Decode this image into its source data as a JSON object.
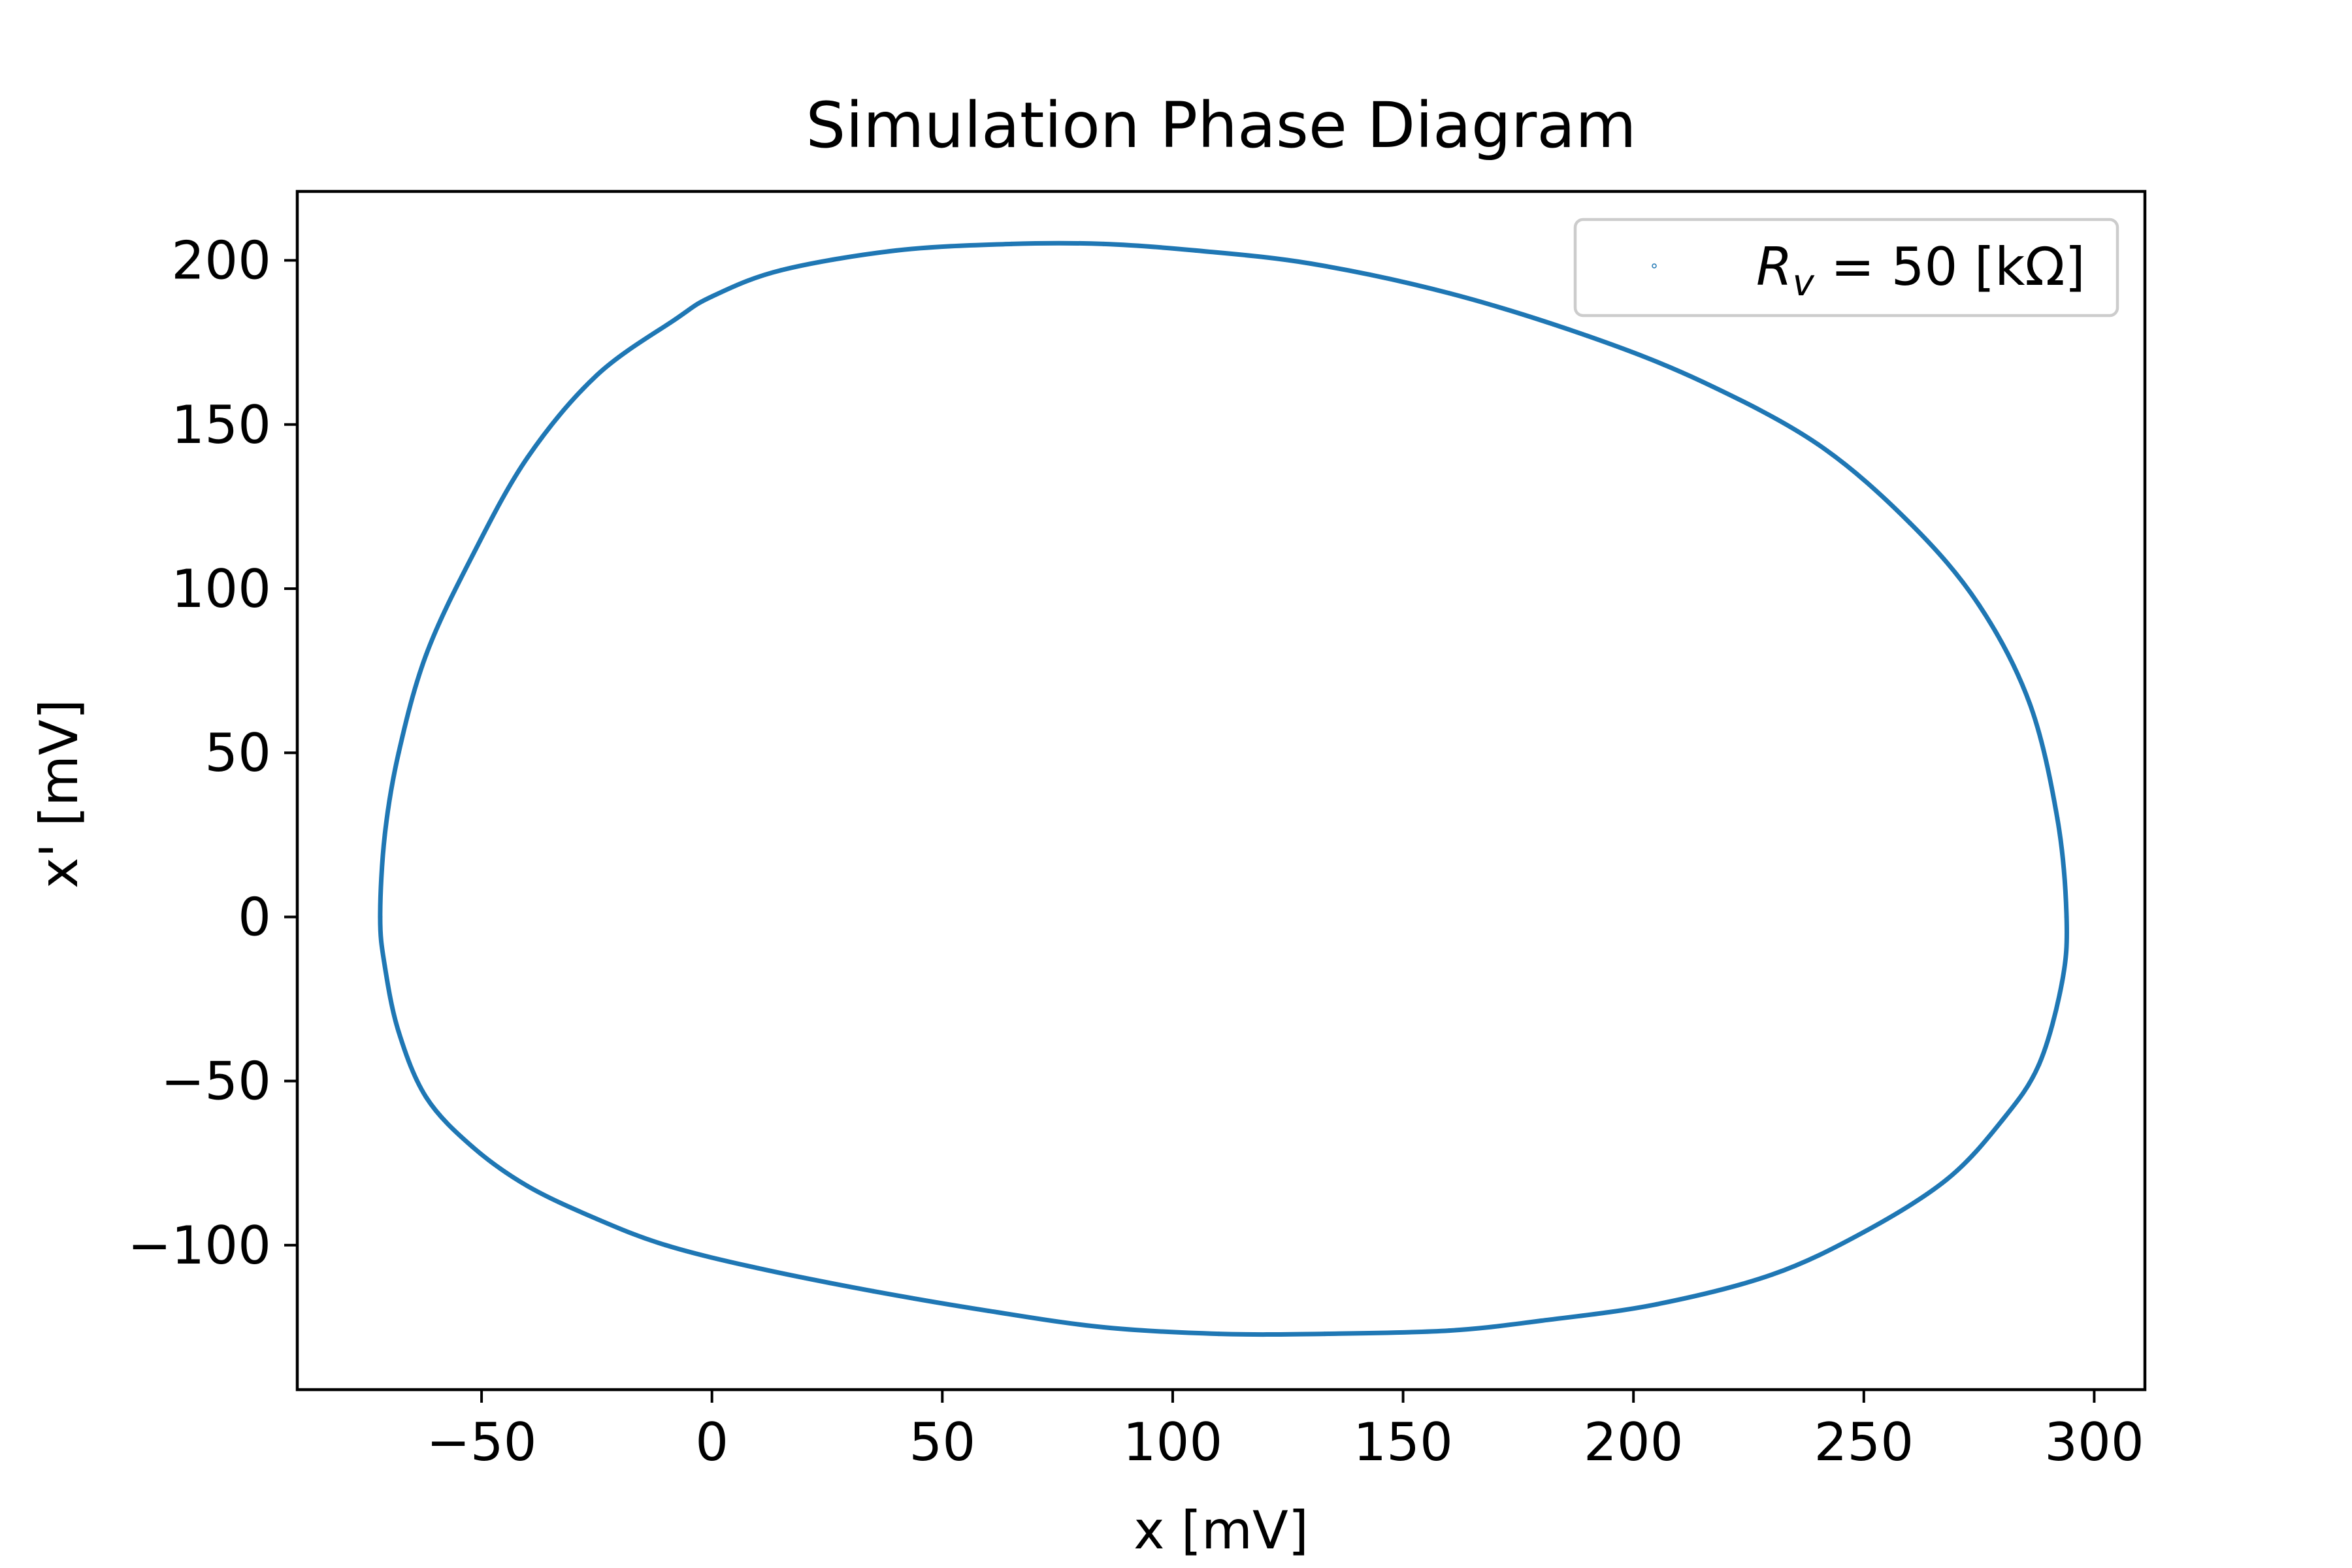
{
  "chart_data": {
    "type": "scatter",
    "title": "Simulation Phase Diagram",
    "xlabel": "x [mV]",
    "ylabel": "x' [mV]",
    "xlim": [
      -90,
      311
    ],
    "ylim": [
      -144,
      221
    ],
    "x_ticks": [
      -50,
      0,
      50,
      100,
      150,
      200,
      250,
      300
    ],
    "x_tick_labels": [
      "−50",
      "0",
      "50",
      "100",
      "150",
      "200",
      "250",
      "300"
    ],
    "y_ticks": [
      -100,
      -50,
      0,
      50,
      100,
      150,
      200
    ],
    "y_tick_labels": [
      "−100",
      "−50",
      "0",
      "50",
      "100",
      "150",
      "200"
    ],
    "grid": false,
    "legend": {
      "placement": "top-right",
      "entries": [
        {
          "label_prefix": "R",
          "label_subscript": "v",
          "label_suffix": " = 50 [kΩ]",
          "color": "#1f77b4",
          "marker": "point"
        }
      ]
    },
    "series": [
      {
        "name": "R_v = 50 [kΩ]",
        "color": "#1f77b4",
        "x": [
          -72,
          -71,
          -68,
          -62,
          -52,
          -40,
          -25,
          -8,
          0,
          15,
          40,
          65,
          85,
          105,
          130,
          160,
          190,
          215,
          240,
          260,
          275,
          286,
          292,
          294,
          293,
          288,
          280,
          268,
          250,
          230,
          205,
          180,
          160,
          133,
          110,
          85,
          60,
          35,
          10,
          -10,
          -25,
          -40,
          -52,
          -62,
          -68,
          -71,
          -72
        ],
        "y": [
          0,
          25,
          50,
          80,
          110,
          140,
          165,
          182,
          189,
          197,
          203,
          205,
          205,
          203,
          199,
          190,
          177,
          163,
          144,
          120,
          95,
          65,
          30,
          0,
          -20,
          -45,
          -62,
          -80,
          -96,
          -109,
          -118,
          -123,
          -126,
          -127,
          -127,
          -125,
          -120,
          -114,
          -107,
          -100,
          -92,
          -82,
          -70,
          -55,
          -35,
          -15,
          0
        ]
      }
    ]
  }
}
